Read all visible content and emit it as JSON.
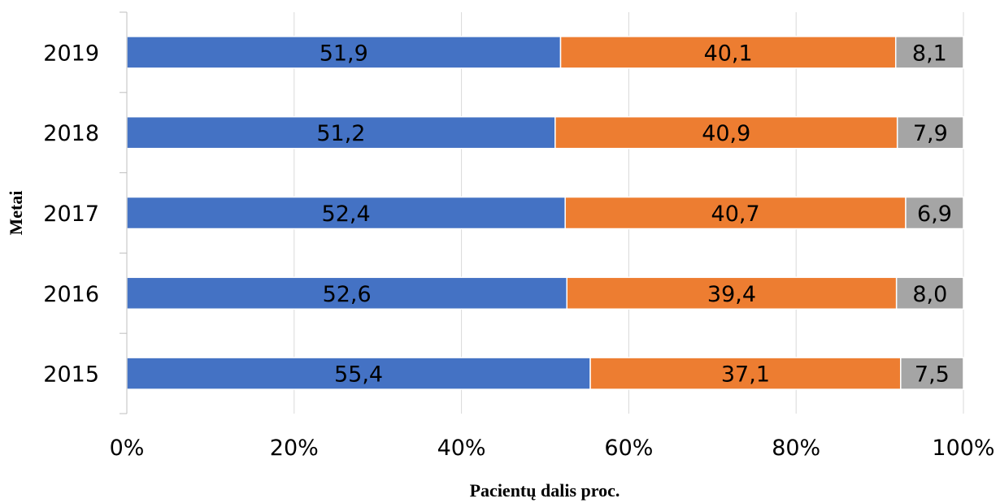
{
  "chart_data": {
    "type": "bar",
    "orientation": "horizontal",
    "stacked": "percent",
    "categories": [
      "2019",
      "2018",
      "2017",
      "2016",
      "2015"
    ],
    "series": [
      {
        "values": [
          51.9,
          51.2,
          52.4,
          52.6,
          55.4
        ],
        "labels": [
          "51,9",
          "51,2",
          "52,4",
          "52,6",
          "55,4"
        ],
        "color": "#4472C4"
      },
      {
        "values": [
          40.1,
          40.9,
          40.7,
          39.4,
          37.1
        ],
        "labels": [
          "40,1",
          "40,9",
          "40,7",
          "39,4",
          "37,1"
        ],
        "color": "#ED7D31"
      },
      {
        "values": [
          8.1,
          7.9,
          6.9,
          8.0,
          7.5
        ],
        "labels": [
          "8,1",
          "7,9",
          "6,9",
          "8,0",
          "7,5"
        ],
        "color": "#A5A5A5"
      }
    ],
    "xlabel": "Pacientų dalis proc.",
    "ylabel": "Metai",
    "xlim": [
      0,
      100
    ],
    "xticks": [
      "0%",
      "20%",
      "40%",
      "60%",
      "80%",
      "100%"
    ],
    "grid": "vertical",
    "legend": "none"
  }
}
